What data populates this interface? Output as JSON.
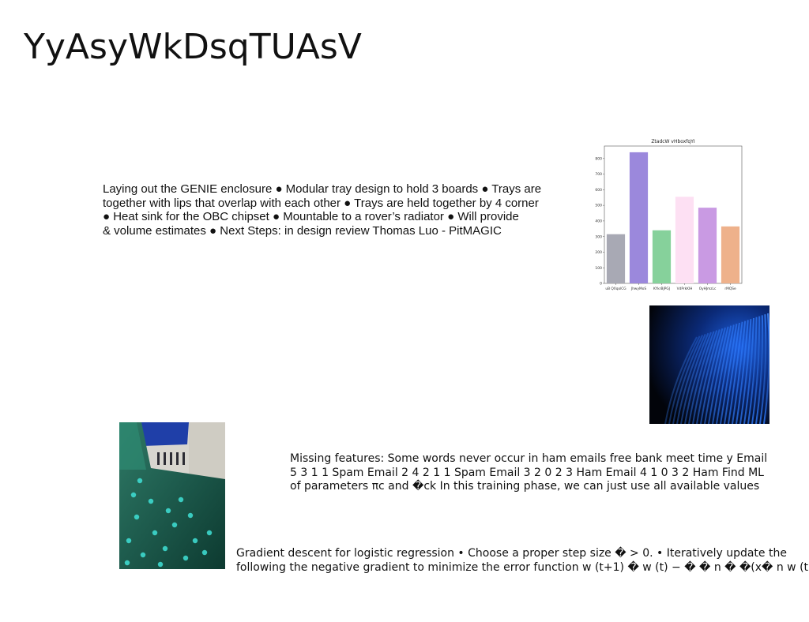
{
  "slide": {
    "title": "YyAsyWkDsqTUAsV"
  },
  "block1": {
    "lines": [
      "Laying out the GENIE enclosure ● Modular tray design to hold 3 boards ● Trays are",
      "together with lips that overlap with each other ● Trays are held together by 4 corner",
      "● Heat sink for the OBC chipset ● Mountable to a rover’s radiator ● Will provide",
      "& volume estimates ● Next Steps: in design review Thomas Luo - PitMAGIC"
    ]
  },
  "block2": {
    "lines": [
      "Missing features: Some words never occur in ham emails free bank meet time y Email",
      "5 3 1 1 Spam Email 2 4 2 1 1 Spam Email 3 2 0 2 3 Ham Email 4 1 0 3 2 Ham Find ML",
      "of parameters πc and �ck In this training phase, we can just use all available values"
    ]
  },
  "block3": {
    "lines": [
      "Gradient descent for logistic regression • Choose a proper step size � > 0. • Iteratively update the",
      "following the negative gradient to minimize the error function w (t+1) � w (t) − � � n � �(x� n w (t)) −"
    ]
  },
  "images": {
    "waves": "abstract-blue-waves-image",
    "field": "green-field-building-image"
  },
  "chart_data": {
    "type": "bar",
    "title": "ZtadcW vHboxfqYI",
    "categories": [
      "uB QXqolCG",
      "JhwyMoS",
      "KYkrBJPGJ",
      "VdPrkKlH",
      "OyHJmzLc",
      "rMQSe"
    ],
    "values": [
      315,
      840,
      340,
      555,
      485,
      365
    ],
    "colors": [
      "#a8a9b4",
      "#9b88dc",
      "#86d19b",
      "#fde0f3",
      "#c99ae3",
      "#eeb18b"
    ],
    "ylim": [
      0,
      880
    ],
    "yticks": [
      0,
      100,
      200,
      300,
      400,
      500,
      600,
      700,
      800
    ],
    "xlabel": "",
    "ylabel": "",
    "grid": false
  }
}
